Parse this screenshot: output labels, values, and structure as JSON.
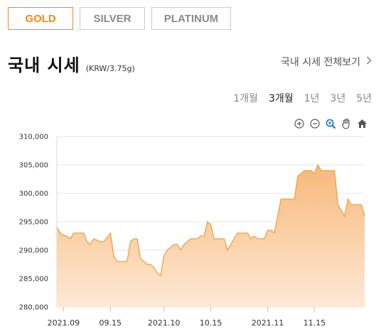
{
  "tabs": [
    {
      "label": "GOLD",
      "active": true
    },
    {
      "label": "SILVER",
      "active": false
    },
    {
      "label": "PLATINUM",
      "active": false
    }
  ],
  "header": {
    "title": "국내 시세",
    "unit": "(KRW/3.75g)",
    "see_all": "국내 시세 전체보기",
    "see_all_icon": "chevron-right-icon"
  },
  "periods": [
    {
      "label": "1개월",
      "selected": false
    },
    {
      "label": "3개월",
      "selected": true
    },
    {
      "label": "1년",
      "selected": false
    },
    {
      "label": "3년",
      "selected": false
    },
    {
      "label": "5년",
      "selected": false
    }
  ],
  "toolbar": [
    "zoom-in-icon",
    "zoom-out-icon",
    "magnifier-icon",
    "pan-hand-icon",
    "home-icon"
  ],
  "colors": {
    "accent": "#f08a1c",
    "line": "#f2a23a",
    "fill_top": "#f8b87a",
    "fill_bottom": "#fde9d6"
  },
  "chart_data": {
    "type": "area",
    "ylim": [
      280000,
      310000
    ],
    "yticks": [
      280000,
      285000,
      290000,
      295000,
      300000,
      305000,
      310000
    ],
    "ytick_labels": [
      "280,000",
      "285,000",
      "290,000",
      "295,000",
      "300,000",
      "305,000",
      "310,000"
    ],
    "xlim": [
      "2021-08-30",
      "2021-11-30"
    ],
    "xticks": [
      {
        "date": "2021-09-01",
        "label": "2021.09"
      },
      {
        "date": "2021-09-15",
        "label": "09.15"
      },
      {
        "date": "2021-10-01",
        "label": "2021.10"
      },
      {
        "date": "2021-10-15",
        "label": "10.15"
      },
      {
        "date": "2021-11-01",
        "label": "2021.11"
      },
      {
        "date": "2021-11-15",
        "label": "11.15"
      }
    ],
    "grid": true,
    "series": [
      {
        "values": [
          [
            "2021-08-30",
            294000
          ],
          [
            "2021-08-31",
            293000
          ],
          [
            "2021-09-01",
            292600
          ],
          [
            "2021-09-02",
            292500
          ],
          [
            "2021-09-03",
            292000
          ],
          [
            "2021-09-04",
            293000
          ],
          [
            "2021-09-06",
            293000
          ],
          [
            "2021-09-07",
            293000
          ],
          [
            "2021-09-08",
            291500
          ],
          [
            "2021-09-09",
            291000
          ],
          [
            "2021-09-10",
            292000
          ],
          [
            "2021-09-12",
            291500
          ],
          [
            "2021-09-13",
            291500
          ],
          [
            "2021-09-14",
            292200
          ],
          [
            "2021-09-15",
            293000
          ],
          [
            "2021-09-16",
            289000
          ],
          [
            "2021-09-17",
            288000
          ],
          [
            "2021-09-18",
            288000
          ],
          [
            "2021-09-20",
            288000
          ],
          [
            "2021-09-21",
            291500
          ],
          [
            "2021-09-22",
            292000
          ],
          [
            "2021-09-23",
            292000
          ],
          [
            "2021-09-24",
            288500
          ],
          [
            "2021-09-25",
            288000
          ],
          [
            "2021-09-26",
            287500
          ],
          [
            "2021-09-27",
            287500
          ],
          [
            "2021-09-28",
            287000
          ],
          [
            "2021-09-29",
            286000
          ],
          [
            "2021-09-30",
            285500
          ],
          [
            "2021-10-01",
            289000
          ],
          [
            "2021-10-02",
            290000
          ],
          [
            "2021-10-03",
            290500
          ],
          [
            "2021-10-04",
            291000
          ],
          [
            "2021-10-05",
            291000
          ],
          [
            "2021-10-06",
            290000
          ],
          [
            "2021-10-07",
            291000
          ],
          [
            "2021-10-08",
            291500
          ],
          [
            "2021-10-09",
            292000
          ],
          [
            "2021-10-10",
            292000
          ],
          [
            "2021-10-11",
            292000
          ],
          [
            "2021-10-12",
            292500
          ],
          [
            "2021-10-13",
            292500
          ],
          [
            "2021-10-14",
            295000
          ],
          [
            "2021-10-15",
            294500
          ],
          [
            "2021-10-16",
            292000
          ],
          [
            "2021-10-17",
            292000
          ],
          [
            "2021-10-18",
            292000
          ],
          [
            "2021-10-19",
            292000
          ],
          [
            "2021-10-20",
            290000
          ],
          [
            "2021-10-21",
            291000
          ],
          [
            "2021-10-22",
            292000
          ],
          [
            "2021-10-23",
            293000
          ],
          [
            "2021-10-24",
            293000
          ],
          [
            "2021-10-26",
            293000
          ],
          [
            "2021-10-27",
            292000
          ],
          [
            "2021-10-28",
            292500
          ],
          [
            "2021-10-29",
            292000
          ],
          [
            "2021-10-30",
            292000
          ],
          [
            "2021-10-31",
            292000
          ],
          [
            "2021-11-01",
            293500
          ],
          [
            "2021-11-02",
            293500
          ],
          [
            "2021-11-03",
            293000
          ],
          [
            "2021-11-04",
            296000
          ],
          [
            "2021-11-05",
            299000
          ],
          [
            "2021-11-06",
            299000
          ],
          [
            "2021-11-07",
            299000
          ],
          [
            "2021-11-08",
            299000
          ],
          [
            "2021-11-09",
            299000
          ],
          [
            "2021-11-10",
            303000
          ],
          [
            "2021-11-11",
            303500
          ],
          [
            "2021-11-12",
            304000
          ],
          [
            "2021-11-13",
            304000
          ],
          [
            "2021-11-14",
            304000
          ],
          [
            "2021-11-15",
            303500
          ],
          [
            "2021-11-16",
            305000
          ],
          [
            "2021-11-17",
            304000
          ],
          [
            "2021-11-18",
            304000
          ],
          [
            "2021-11-19",
            304000
          ],
          [
            "2021-11-20",
            304000
          ],
          [
            "2021-11-21",
            304000
          ],
          [
            "2021-11-22",
            298000
          ],
          [
            "2021-11-23",
            297000
          ],
          [
            "2021-11-24",
            296000
          ],
          [
            "2021-11-25",
            299000
          ],
          [
            "2021-11-26",
            298000
          ],
          [
            "2021-11-27",
            298000
          ],
          [
            "2021-11-28",
            298000
          ],
          [
            "2021-11-29",
            298000
          ],
          [
            "2021-11-30",
            296000
          ]
        ]
      }
    ]
  }
}
